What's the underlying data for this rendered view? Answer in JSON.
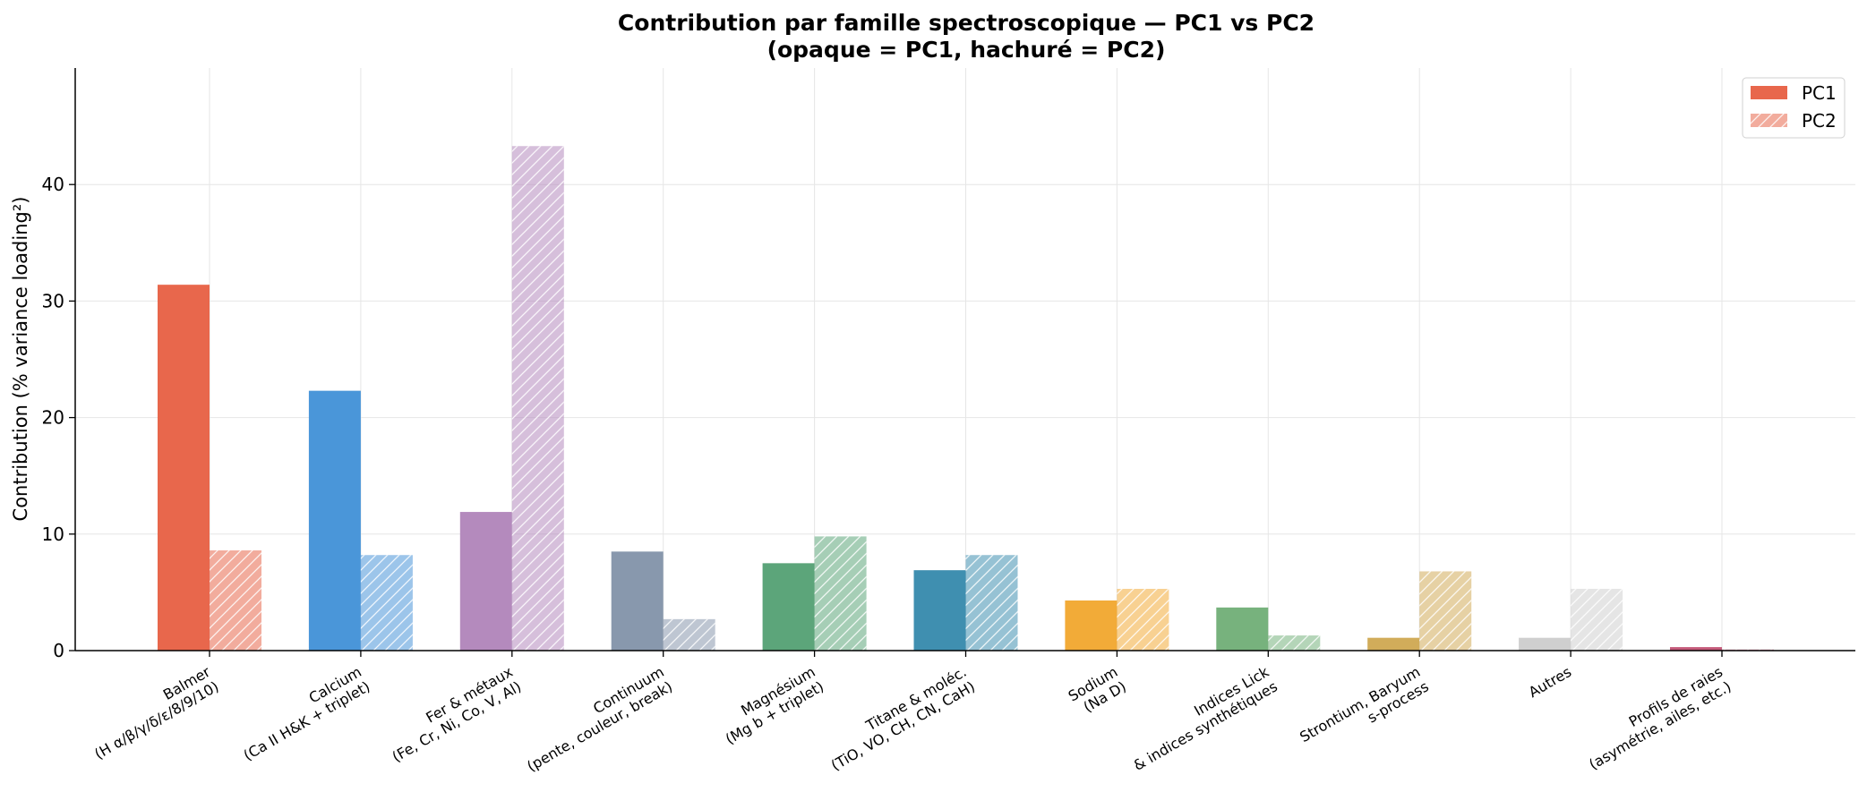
{
  "chart_data": {
    "type": "bar",
    "title": "Contribution par famille spectroscopique — PC1 vs PC2",
    "subtitle": "(opaque = PC1, hachuré = PC2)",
    "xlabel": "",
    "ylabel": "Contribution (% variance loading²)",
    "ylim": [
      0,
      50
    ],
    "yticks": [
      0,
      10,
      20,
      30,
      40
    ],
    "grid": true,
    "legend_position": "top-right",
    "categories": [
      [
        "Balmer",
        "(H α/β/γ/δ/ε/8/9/10)"
      ],
      [
        "Calcium",
        "(Ca II H&K + triplet)"
      ],
      [
        "Fer & métaux",
        "(Fe, Cr, Ni, Co, V, Al)"
      ],
      [
        "Continuum",
        "(pente, couleur, break)"
      ],
      [
        "Magnésium",
        "(Mg b + triplet)"
      ],
      [
        "Titane & moléc.",
        "(TiO, VO, CH, CN, CaH)"
      ],
      [
        "Sodium",
        "(Na D)"
      ],
      [
        "Indices Lick",
        "& indices synthétiques"
      ],
      [
        "Strontium, Baryum",
        "s-process"
      ],
      [
        "Autres"
      ],
      [
        "Profils de raies",
        "(asymétrie, ailes, etc.)"
      ]
    ],
    "colors": [
      "#e8674c",
      "#4a96d9",
      "#b48abd",
      "#8898ad",
      "#5ca57a",
      "#3f8fb0",
      "#f2ab38",
      "#77b27d",
      "#d1ac5a",
      "#cfcfcf",
      "#c45a7a"
    ],
    "series": [
      {
        "name": "PC1",
        "style": "opaque",
        "values": [
          31.4,
          22.3,
          11.9,
          8.5,
          7.5,
          6.9,
          4.3,
          3.7,
          1.1,
          1.1,
          0.3
        ]
      },
      {
        "name": "PC2",
        "style": "hatched",
        "values": [
          8.6,
          8.2,
          43.3,
          2.7,
          9.8,
          8.2,
          5.3,
          1.3,
          6.8,
          5.3,
          0.1
        ]
      }
    ]
  }
}
